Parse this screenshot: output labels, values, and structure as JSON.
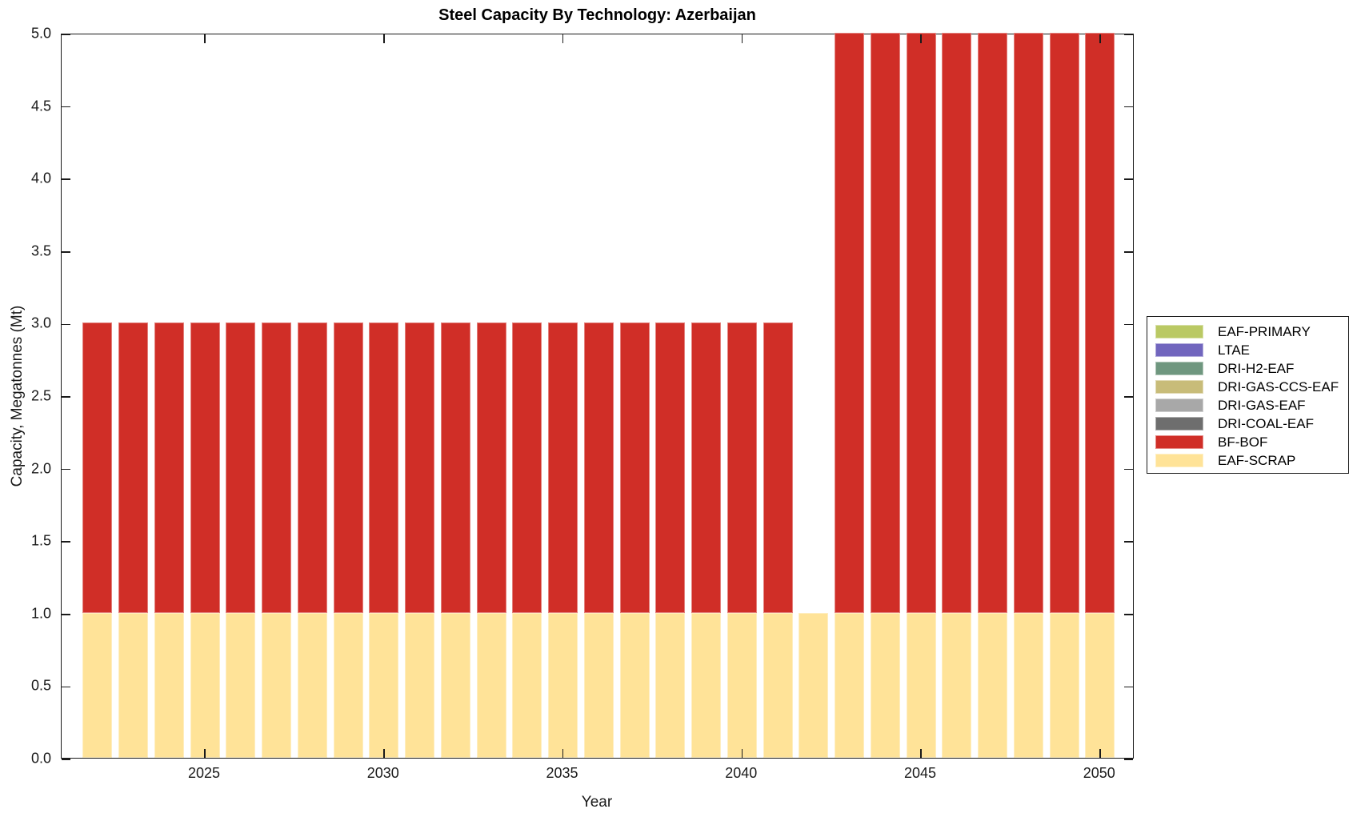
{
  "chart_data": {
    "type": "bar",
    "stacked": true,
    "title": "Steel Capacity By Technology: Azerbaijan",
    "xlabel": "Year",
    "ylabel": "Capacity, Megatonnes (Mt)",
    "ylim": [
      0,
      5
    ],
    "grid": false,
    "legend_position": "right-outside",
    "axis_color": "#1A1A1A",
    "x": [
      2022,
      2023,
      2024,
      2025,
      2026,
      2027,
      2028,
      2029,
      2030,
      2031,
      2032,
      2033,
      2034,
      2035,
      2036,
      2037,
      2038,
      2039,
      2040,
      2041,
      2042,
      2043,
      2044,
      2045,
      2046,
      2047,
      2048,
      2049,
      2050
    ],
    "series": [
      {
        "name": "EAF-SCRAP",
        "color": "#FFE398",
        "values": [
          1,
          1,
          1,
          1,
          1,
          1,
          1,
          1,
          1,
          1,
          1,
          1,
          1,
          1,
          1,
          1,
          1,
          1,
          1,
          1,
          1,
          1,
          1,
          1,
          1,
          1,
          1,
          1,
          1
        ]
      },
      {
        "name": "BF-BOF",
        "color": "#D02E27",
        "values": [
          2,
          2,
          2,
          2,
          2,
          2,
          2,
          2,
          2,
          2,
          2,
          2,
          2,
          2,
          2,
          2,
          2,
          2,
          2,
          2,
          0,
          4,
          4,
          4,
          4,
          4,
          4,
          4,
          4
        ]
      }
    ],
    "yticks": [
      "0.0",
      "0.5",
      "1.0",
      "1.5",
      "2.0",
      "2.5",
      "3.0",
      "3.5",
      "4.0",
      "4.5",
      "5.0"
    ],
    "xticks": [
      "2025",
      "2030",
      "2035",
      "2040",
      "2045",
      "2050"
    ],
    "legend": [
      {
        "label": "EAF-PRIMARY",
        "color": "#BAC964"
      },
      {
        "label": "LTAE",
        "color": "#7166BE"
      },
      {
        "label": "DRI-H2-EAF",
        "color": "#6F977F"
      },
      {
        "label": "DRI-GAS-CCS-EAF",
        "color": "#C8BC79"
      },
      {
        "label": "DRI-GAS-EAF",
        "color": "#A8A8A8"
      },
      {
        "label": "DRI-COAL-EAF",
        "color": "#6E6E6E"
      },
      {
        "label": "BF-BOF",
        "color": "#D02E27"
      },
      {
        "label": "EAF-SCRAP",
        "color": "#FFE398"
      }
    ]
  }
}
